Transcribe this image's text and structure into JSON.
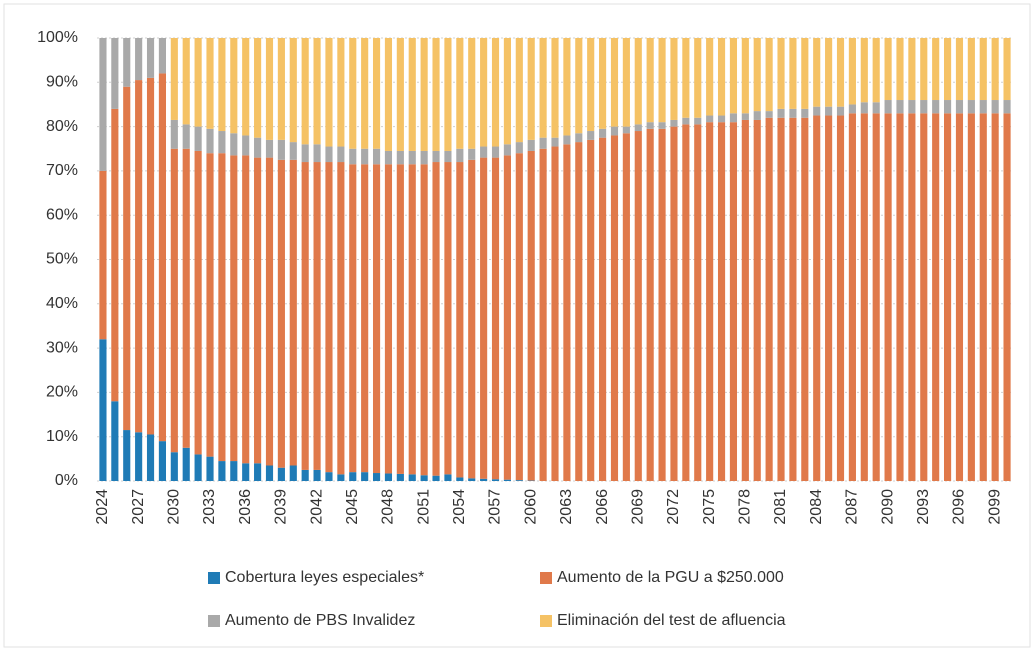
{
  "chart_data": {
    "type": "stacked_bar",
    "categories": [
      "2024",
      null,
      null,
      "2027",
      null,
      null,
      "2030",
      null,
      null,
      "2033",
      null,
      null,
      "2036",
      null,
      null,
      "2039",
      null,
      null,
      "2042",
      null,
      null,
      "2045",
      null,
      null,
      "2048",
      null,
      null,
      "2051",
      null,
      null,
      "2054",
      null,
      null,
      "2057",
      null,
      null,
      "2060",
      null,
      null,
      "2063",
      null,
      null,
      "2066",
      null,
      null,
      "2069",
      null,
      null,
      "2072",
      null,
      null,
      "2075",
      null,
      null,
      "2078",
      null,
      null,
      "2081",
      null,
      null,
      "2084",
      null,
      null,
      "2087",
      null,
      null,
      "2090",
      null,
      null,
      "2093",
      null,
      null,
      "2096",
      null,
      null,
      "2099",
      null
    ],
    "series": [
      {
        "name": "Cobertura leyes especiales*",
        "color": "#1f7bb6",
        "values": [
          32,
          18,
          11.5,
          11,
          10.5,
          9,
          6.5,
          7.5,
          6,
          5.5,
          4.5,
          4.5,
          4,
          4,
          3.5,
          3,
          3.5,
          2.5,
          2.5,
          2,
          1.5,
          2,
          2,
          1.8,
          1.7,
          1.6,
          1.5,
          1.3,
          1.2,
          1.5,
          0.8,
          0.6,
          0.5,
          0.4,
          0.3,
          0.2,
          0.1,
          0,
          0,
          0,
          0,
          0,
          0,
          0,
          0,
          0,
          0,
          0,
          0,
          0,
          0,
          0,
          0,
          0,
          0,
          0,
          0,
          0,
          0,
          0,
          0,
          0,
          0,
          0,
          0,
          0,
          0,
          0,
          0,
          0,
          0,
          0,
          0,
          0,
          0,
          0,
          0
        ]
      },
      {
        "name": "Aumento de la PGU a $250.000",
        "color": "#e0794a",
        "values": [
          38,
          66,
          77.5,
          79.5,
          80.5,
          83,
          68.5,
          67.5,
          68.5,
          68.5,
          69.5,
          69,
          69.5,
          69,
          69.5,
          69.5,
          69,
          69.5,
          69.5,
          70,
          70.5,
          69.5,
          69.5,
          69.7,
          69.8,
          69.9,
          70,
          70.2,
          70.8,
          70.5,
          71.2,
          71.9,
          72.5,
          72.6,
          73.2,
          73.8,
          74.4,
          75,
          75.5,
          76,
          76.5,
          77,
          77.5,
          78,
          78.5,
          79,
          79.5,
          79.5,
          80,
          80.5,
          80.5,
          81,
          81,
          81,
          81.5,
          81.5,
          82,
          82,
          82,
          82,
          82.5,
          82.5,
          82.5,
          83,
          83,
          83,
          83,
          83,
          83,
          83,
          83,
          83,
          83,
          83,
          83,
          83,
          83
        ]
      },
      {
        "name": "Aumento de PBS Invalidez",
        "color": "#a9a9a9",
        "values": [
          30,
          16,
          11,
          9.5,
          9,
          8,
          6.5,
          5.5,
          5.5,
          5.5,
          5,
          5,
          4.5,
          4.5,
          4,
          4.5,
          4,
          4,
          4,
          3.5,
          3.5,
          3.5,
          3.5,
          3.5,
          3,
          3,
          3,
          3,
          2.5,
          2.5,
          3,
          2.5,
          2.5,
          2.5,
          2.5,
          2.5,
          2.5,
          2.5,
          2,
          2,
          2,
          2,
          2,
          2,
          1.5,
          1.5,
          1.5,
          1.5,
          1.5,
          1.5,
          1.5,
          1.5,
          1.5,
          2,
          1.5,
          2,
          1.5,
          2,
          2,
          2,
          2,
          2,
          2,
          2,
          2.5,
          2.5,
          3,
          3,
          3,
          3,
          3,
          3,
          3,
          3,
          3,
          3,
          3
        ]
      },
      {
        "name": "Eliminación del test de afluencia",
        "color": "#f5c265",
        "values": [
          0,
          0,
          0,
          0,
          0,
          0,
          18.5,
          19.5,
          20,
          20.5,
          21,
          21.5,
          22,
          22.5,
          23,
          23,
          23.5,
          24,
          24,
          24.5,
          24.5,
          25,
          25,
          25,
          25.5,
          25.5,
          25.5,
          25.5,
          25.5,
          25.5,
          25,
          25,
          24.5,
          24.5,
          24,
          23.5,
          23,
          22.5,
          22.5,
          22,
          21.5,
          21,
          20.5,
          20,
          20,
          19.5,
          19,
          19,
          18.5,
          18,
          18,
          17.5,
          17.5,
          17,
          17,
          16.5,
          16.5,
          16,
          16,
          16,
          15.5,
          15.5,
          15.5,
          15,
          14.5,
          14.5,
          14,
          14,
          14,
          14,
          14,
          14,
          14,
          14,
          14,
          14,
          14
        ]
      }
    ],
    "ylim": [
      0,
      100
    ],
    "yticks": [
      {
        "value": 0,
        "label": "0%"
      },
      {
        "value": 10,
        "label": "10%"
      },
      {
        "value": 20,
        "label": "20%"
      },
      {
        "value": 30,
        "label": "30%"
      },
      {
        "value": 40,
        "label": "40%"
      },
      {
        "value": 50,
        "label": "50%"
      },
      {
        "value": 60,
        "label": "60%"
      },
      {
        "value": 70,
        "label": "70%"
      },
      {
        "value": 80,
        "label": "80%"
      },
      {
        "value": 90,
        "label": "90%"
      },
      {
        "value": 100,
        "label": "100%"
      }
    ],
    "grid": true,
    "legend": "bottom"
  }
}
